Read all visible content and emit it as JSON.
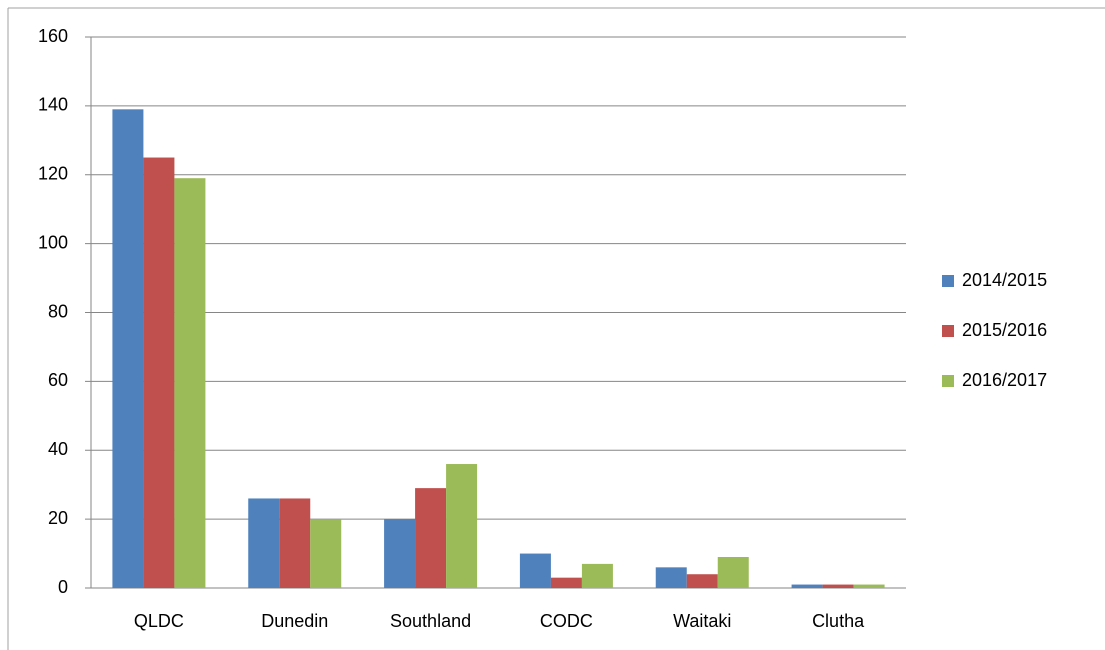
{
  "chart_data": {
    "type": "bar",
    "categories": [
      "QLDC",
      "Dunedin",
      "Southland",
      "CODC",
      "Waitaki",
      "Clutha"
    ],
    "series": [
      {
        "name": "2014/2015",
        "color": "#4f81bd",
        "values": [
          139,
          26,
          20,
          10,
          6,
          1
        ]
      },
      {
        "name": "2015/2016",
        "color": "#c0504d",
        "values": [
          125,
          26,
          29,
          3,
          4,
          1
        ]
      },
      {
        "name": "2016/2017",
        "color": "#9bbb59",
        "values": [
          119,
          20,
          36,
          7,
          9,
          1
        ]
      }
    ],
    "ylim": [
      0,
      160
    ],
    "yticks": [
      0,
      20,
      40,
      60,
      80,
      100,
      120,
      140,
      160
    ],
    "grid": true,
    "legend": "right"
  }
}
